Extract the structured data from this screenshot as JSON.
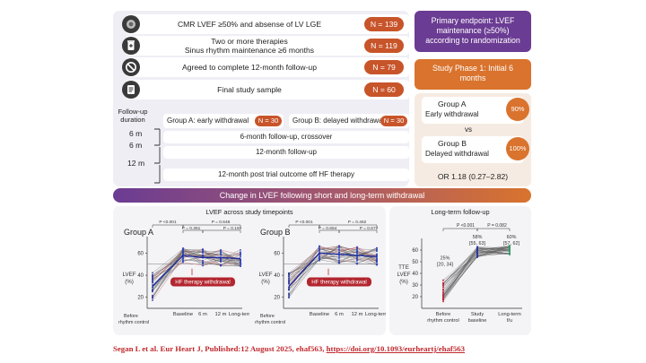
{
  "flow": {
    "rows": [
      {
        "text": "CMR LVEF ≥50% and absense of LV LGE",
        "n": "N = 139",
        "icon": "heart-scan-icon"
      },
      {
        "text": "Two or more therapies\nSinus rhythm maintenance ≥6 months",
        "n": "N = 119",
        "icon": "pill-bottle-icon"
      },
      {
        "text": "Agreed to complete 12-month follow-up",
        "n": "N = 79",
        "icon": "prohibited-icon"
      },
      {
        "text": "Final study sample",
        "n": "N = 60",
        "icon": "clipboard-icon"
      }
    ],
    "followup_label": "Follow-up duration",
    "group_a_label": "Group A: early withdrawal",
    "group_a_n": "N = 30",
    "group_b_label": "Group B: delayed withdrawal",
    "group_b_n": "N = 30",
    "durations": [
      "6 m",
      "6 m",
      "12 m"
    ],
    "phase_rows": [
      "6-month follow-up, crossover",
      "12-month follow-up",
      "12-month post trial outcome off HF therapy"
    ]
  },
  "right": {
    "primary_endpoint": "Primary endpoint: LVEF maintenance (≥50%) according to randomization",
    "study_phase": "Study Phase 1: Initial 6 months",
    "group_a_title": "Group A",
    "group_a_sub": "Early withdrawal",
    "group_a_pct": "90%",
    "vs": "vs",
    "group_b_title": "Group B",
    "group_b_sub": "Delayed withdrawal",
    "group_b_pct": "100%",
    "or": "OR 1.18 (0.27–2.82)"
  },
  "banner": "Change in LVEF following short and long-term withdrawal",
  "lower_left_title": "LVEF across study timepoints",
  "lower_right_title": "Long-term follow-up",
  "citation": {
    "text": "Segan L et al. Eur Heart J, Published:12 August 2025, ehaf563, ",
    "link": "https://doi.org/10.1093/eurheartj/ehaf563"
  },
  "colors": {
    "purple": "#6b3c93",
    "orange": "#d9732d",
    "red_pill": "#c8542a",
    "line_blue": "#2233aa",
    "line_red": "#cc2233",
    "green": "#2e9d6a"
  },
  "chart_data": [
    {
      "type": "line",
      "title": "Group A",
      "x": [
        "Before rhythm control",
        "Baseline",
        "6 m",
        "12 m",
        "Long-term"
      ],
      "ylabel": "LVEF (%)",
      "yticks": [
        20,
        40,
        60
      ],
      "ylim": [
        10,
        75
      ],
      "pvalues": {
        "bracket_outer": "P <0.001",
        "bracket_right": "P = 0.648",
        "p2": "P = 0.361",
        "p3": "P = 0.194"
      },
      "annotation": "HF therapy withdrawal",
      "series_approx": {
        "before": 30,
        "baseline": 58,
        "m6": 56,
        "m12": 56,
        "long": 55
      }
    },
    {
      "type": "line",
      "title": "Group B",
      "x": [
        "Before rhythm control",
        "Baseline",
        "6 m",
        "12 m",
        "Long-term"
      ],
      "ylabel": "LVEF (%)",
      "yticks": [
        20,
        40,
        60
      ],
      "ylim": [
        10,
        75
      ],
      "pvalues": {
        "bracket_outer": "P <0.001",
        "bracket_right": "P = 0.462",
        "p2": "P = 0.654",
        "p3": "P = 0.672"
      },
      "annotation": "HF therapy withdrawal",
      "series_approx": {
        "before": 30,
        "baseline": 60,
        "m6": 59,
        "m12": 58,
        "long": 57
      }
    },
    {
      "type": "line",
      "title": "Long-term follow-up",
      "x": [
        "Before rhythm control",
        "Study baseline",
        "Long-term f/u"
      ],
      "ylabel": "TTE LVEF (%)",
      "yticks": [
        20,
        30,
        40,
        50,
        60
      ],
      "ylim": [
        10,
        70
      ],
      "pvalues": {
        "p1": "P <0.001",
        "p2": "P = 0.082"
      },
      "labels": [
        "25% [20, 34]",
        "58% [55, 63]",
        "60% [57, 62]"
      ],
      "medians": [
        25,
        58,
        60
      ]
    }
  ]
}
